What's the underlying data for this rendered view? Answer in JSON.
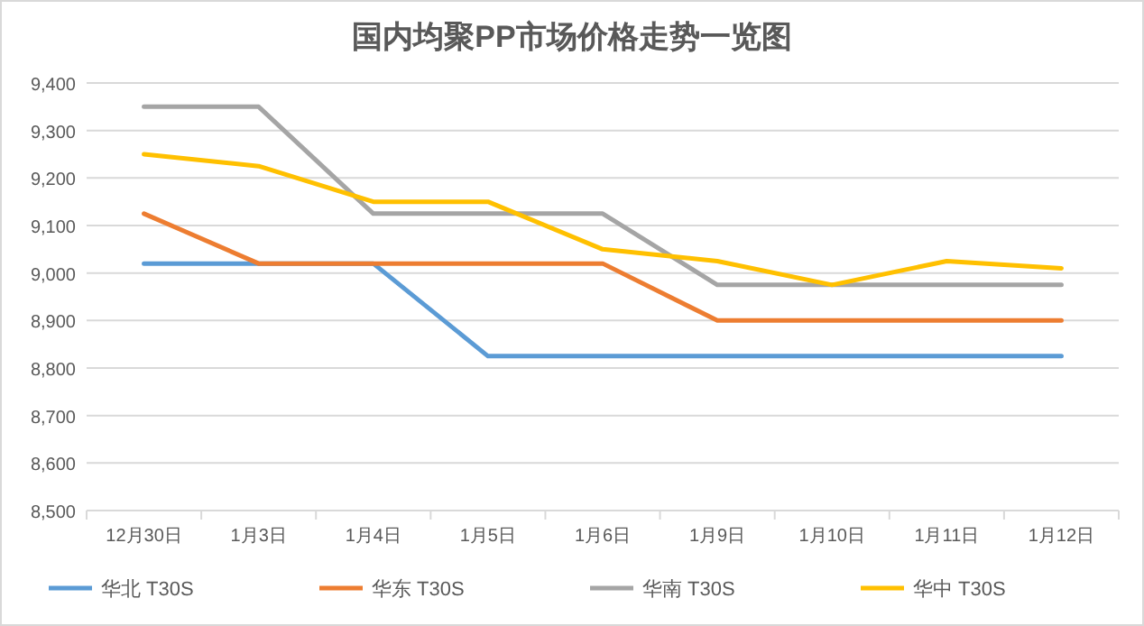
{
  "chart_data": {
    "type": "line",
    "title": "国内均聚PP市场价格走势一览图",
    "categories": [
      "12月30日",
      "1月3日",
      "1月4日",
      "1月5日",
      "1月6日",
      "1月9日",
      "1月10日",
      "1月11日",
      "1月12日"
    ],
    "series": [
      {
        "name": "华北 T30S",
        "color": "#5b9bd5",
        "values": [
          9020,
          9020,
          9020,
          8825,
          8825,
          8825,
          8825,
          8825,
          8825
        ]
      },
      {
        "name": "华东 T30S",
        "color": "#ed7d31",
        "values": [
          9125,
          9020,
          9020,
          9020,
          9020,
          8900,
          8900,
          8900,
          8900
        ]
      },
      {
        "name": "华南 T30S",
        "color": "#a5a5a5",
        "values": [
          9350,
          9350,
          9125,
          9125,
          9125,
          8975,
          8975,
          8975,
          8975
        ]
      },
      {
        "name": "华中 T30S",
        "color": "#ffc000",
        "values": [
          9250,
          9225,
          9150,
          9150,
          9050,
          9025,
          8975,
          9025,
          9010
        ]
      }
    ],
    "ylim": [
      8500,
      9400
    ],
    "yticks": [
      {
        "value": 8500,
        "label": "8,500"
      },
      {
        "value": 8600,
        "label": "8,600"
      },
      {
        "value": 8700,
        "label": "8,700"
      },
      {
        "value": 8800,
        "label": "8,800"
      },
      {
        "value": 8900,
        "label": "8,900"
      },
      {
        "value": 9000,
        "label": "9,000"
      },
      {
        "value": 9100,
        "label": "9,100"
      },
      {
        "value": 9200,
        "label": "9,200"
      },
      {
        "value": 9300,
        "label": "9,300"
      },
      {
        "value": 9400,
        "label": "9,400"
      }
    ],
    "grid": "y",
    "legend": "bottom",
    "marker": "none",
    "line_style": "solid"
  }
}
